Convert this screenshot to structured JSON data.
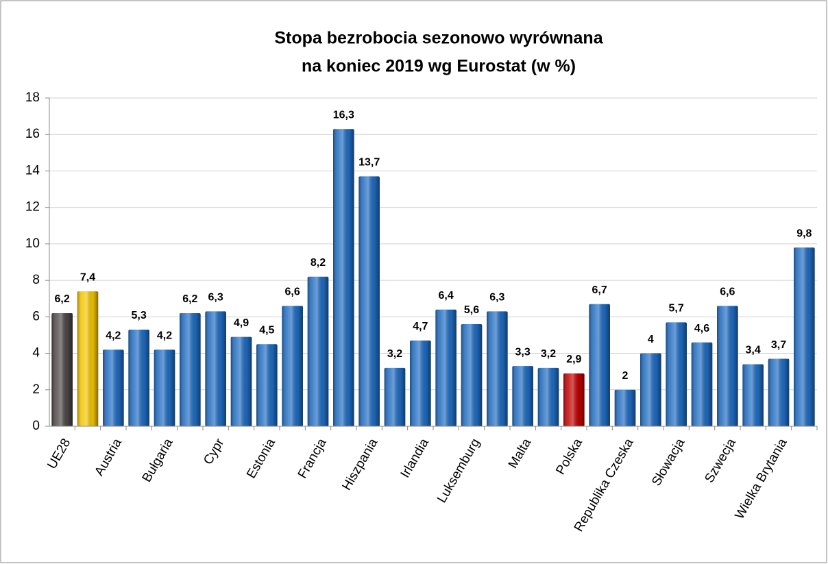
{
  "chart_data": {
    "type": "bar",
    "title": [
      "Stopa bezrobocia sezonowo wyrównana",
      "na koniec 2019 wg Eurostat (w %)"
    ],
    "categories": [
      "UE28",
      null,
      "Austria",
      null,
      "Bułgaria",
      null,
      "Cypr",
      null,
      "Estonia",
      null,
      "Francja",
      null,
      "Hiszpania",
      null,
      "Irlandia",
      null,
      "Luksemburg",
      null,
      "Malta",
      null,
      "Polska",
      null,
      "Republika Czeska",
      null,
      "Słowacja",
      null,
      "Szwecja",
      null,
      "Wielka Brytania",
      null
    ],
    "values": [
      6.2,
      7.4,
      4.2,
      5.3,
      4.2,
      6.2,
      6.3,
      4.9,
      4.5,
      6.6,
      8.2,
      16.3,
      13.7,
      3.2,
      4.7,
      6.4,
      5.6,
      6.3,
      3.3,
      3.2,
      2.9,
      6.7,
      2,
      4,
      5.7,
      4.6,
      6.6,
      3.4,
      3.7,
      9.8
    ],
    "value_labels": [
      "6,2",
      "7,4",
      "4,2",
      "5,3",
      "4,2",
      "6,2",
      "6,3",
      "4,9",
      "4,5",
      "6,6",
      "8,2",
      "16,3",
      "13,7",
      "3,2",
      "4,7",
      "6,4",
      "5,6",
      "6,3",
      "3,3",
      "3,2",
      "2,9",
      "6,7",
      "2",
      "4",
      "5,7",
      "4,6",
      "6,6",
      "3,4",
      "3,7",
      "9,8"
    ],
    "colors": [
      "#4d4646",
      "#f2c400",
      "#1f6bc0",
      "#1f6bc0",
      "#1f6bc0",
      "#1f6bc0",
      "#1f6bc0",
      "#1f6bc0",
      "#1f6bc0",
      "#1f6bc0",
      "#1f6bc0",
      "#1f6bc0",
      "#1f6bc0",
      "#1f6bc0",
      "#1f6bc0",
      "#1f6bc0",
      "#1f6bc0",
      "#1f6bc0",
      "#1f6bc0",
      "#1f6bc0",
      "#c00000",
      "#1f6bc0",
      "#1f6bc0",
      "#1f6bc0",
      "#1f6bc0",
      "#1f6bc0",
      "#1f6bc0",
      "#1f6bc0",
      "#1f6bc0",
      "#1f6bc0"
    ],
    "ylim": [
      0,
      18
    ],
    "yticks": [
      0,
      2,
      4,
      6,
      8,
      10,
      12,
      14,
      16,
      18
    ],
    "grid": true
  }
}
